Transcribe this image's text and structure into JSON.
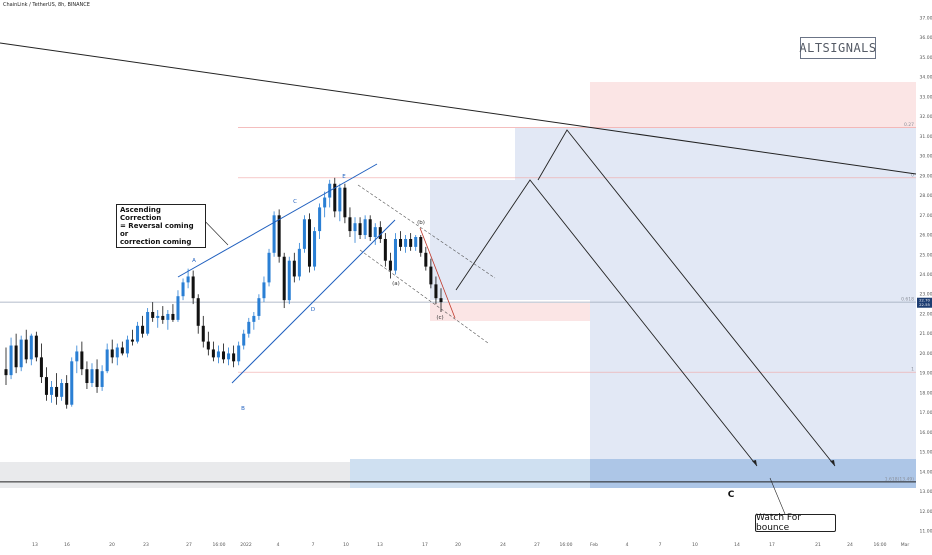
{
  "header": {
    "symbol_line": "ChainLink / TetherUS, 8h, BINANCE"
  },
  "watermark": "ALTSIGNALS",
  "annotations": {
    "ascending_correction": [
      "Ascending Correction",
      "= Reversal coming or",
      "correction coming"
    ],
    "watch_for_bounce": "Watch For bounce",
    "wave_c": "C",
    "labels": [
      "A",
      "B",
      "C",
      "D",
      "E",
      "(a)",
      "(b)",
      "(c)"
    ]
  },
  "fib_labels": [
    "0.27",
    "0",
    "0.618",
    "1",
    "1.618(13.49)"
  ],
  "price_badge": [
    "22.70",
    "22.55"
  ],
  "colors": {
    "up_candle": "#2a7fd4",
    "down_candle": "#111111",
    "target_box": "#dfe6f4",
    "target_box_strong": "#a9c3e6",
    "stop_box": "#fbe2e2",
    "channel": "#1f5fbf",
    "trendline": "#222222"
  },
  "chart_data": {
    "type": "candlestick",
    "title": "ChainLink / TetherUS, 8h, BINANCE",
    "y_axis": {
      "range": [
        10.5,
        38
      ],
      "ticks": [
        "37.00",
        "36.00",
        "35.00",
        "34.00",
        "33.00",
        "32.00",
        "31.00",
        "30.00",
        "29.00",
        "28.00",
        "27.00",
        "26.00",
        "25.00",
        "24.00",
        "23.00",
        "22.00",
        "21.00",
        "20.00",
        "19.00",
        "18.00",
        "17.00",
        "16.00",
        "15.00",
        "14.00",
        "13.00",
        "12.00",
        "11.00"
      ]
    },
    "x_axis": {
      "ticks": [
        "13",
        "16",
        "20",
        "23",
        "27",
        "16:00",
        "2022",
        "4",
        "7",
        "10",
        "13",
        "17",
        "20",
        "24",
        "27",
        "16:00",
        "Feb",
        "4",
        "7",
        "10",
        "14",
        "17",
        "21",
        "24",
        "16:00",
        "Mar"
      ]
    },
    "horizontal_levels": [
      {
        "label": "0.27",
        "price": 31.45
      },
      {
        "label": "0",
        "price": 28.9
      },
      {
        "label": "0.618",
        "price": 22.6
      },
      {
        "label": "1",
        "price": 19.05
      },
      {
        "label": "1.618(13.49)",
        "price": 13.49
      }
    ],
    "candles": [
      {
        "o": 19.2,
        "h": 20.3,
        "l": 18.4,
        "c": 18.9
      },
      {
        "o": 18.9,
        "h": 20.8,
        "l": 18.7,
        "c": 20.4
      },
      {
        "o": 20.4,
        "h": 21.0,
        "l": 19.0,
        "c": 19.3
      },
      {
        "o": 19.3,
        "h": 20.9,
        "l": 19.1,
        "c": 20.7
      },
      {
        "o": 20.7,
        "h": 21.2,
        "l": 19.5,
        "c": 19.7
      },
      {
        "o": 19.7,
        "h": 21.0,
        "l": 19.4,
        "c": 20.9
      },
      {
        "o": 20.9,
        "h": 21.1,
        "l": 19.6,
        "c": 19.8
      },
      {
        "o": 19.8,
        "h": 20.5,
        "l": 18.5,
        "c": 18.8
      },
      {
        "o": 18.8,
        "h": 19.3,
        "l": 17.6,
        "c": 17.9
      },
      {
        "o": 17.9,
        "h": 18.6,
        "l": 17.5,
        "c": 18.3
      },
      {
        "o": 18.3,
        "h": 19.0,
        "l": 17.4,
        "c": 17.8
      },
      {
        "o": 17.8,
        "h": 18.7,
        "l": 17.6,
        "c": 18.5
      },
      {
        "o": 18.5,
        "h": 18.9,
        "l": 17.2,
        "c": 17.4
      },
      {
        "o": 17.4,
        "h": 19.8,
        "l": 17.3,
        "c": 19.6
      },
      {
        "o": 19.6,
        "h": 20.4,
        "l": 19.0,
        "c": 20.1
      },
      {
        "o": 20.1,
        "h": 20.6,
        "l": 18.9,
        "c": 19.2
      },
      {
        "o": 19.2,
        "h": 19.6,
        "l": 18.2,
        "c": 18.5
      },
      {
        "o": 18.5,
        "h": 19.5,
        "l": 18.3,
        "c": 19.2
      },
      {
        "o": 19.2,
        "h": 19.7,
        "l": 18.0,
        "c": 18.3
      },
      {
        "o": 18.3,
        "h": 19.4,
        "l": 18.1,
        "c": 19.1
      },
      {
        "o": 19.1,
        "h": 20.5,
        "l": 19.0,
        "c": 20.2
      },
      {
        "o": 20.2,
        "h": 20.7,
        "l": 19.5,
        "c": 19.8
      },
      {
        "o": 19.8,
        "h": 20.5,
        "l": 19.4,
        "c": 20.3
      },
      {
        "o": 20.3,
        "h": 20.6,
        "l": 19.9,
        "c": 20.0
      },
      {
        "o": 20.0,
        "h": 20.9,
        "l": 19.8,
        "c": 20.7
      },
      {
        "o": 20.7,
        "h": 21.2,
        "l": 20.4,
        "c": 20.6
      },
      {
        "o": 20.6,
        "h": 21.6,
        "l": 20.5,
        "c": 21.4
      },
      {
        "o": 21.4,
        "h": 21.9,
        "l": 20.8,
        "c": 21.0
      },
      {
        "o": 21.0,
        "h": 22.3,
        "l": 20.9,
        "c": 22.1
      },
      {
        "o": 22.1,
        "h": 22.6,
        "l": 21.6,
        "c": 21.8
      },
      {
        "o": 21.8,
        "h": 22.2,
        "l": 21.3,
        "c": 21.9
      },
      {
        "o": 21.9,
        "h": 22.4,
        "l": 21.5,
        "c": 21.7
      },
      {
        "o": 21.7,
        "h": 22.2,
        "l": 21.2,
        "c": 22.0
      },
      {
        "o": 22.0,
        "h": 22.5,
        "l": 21.6,
        "c": 21.7
      },
      {
        "o": 21.7,
        "h": 23.2,
        "l": 21.6,
        "c": 22.9
      },
      {
        "o": 22.9,
        "h": 23.8,
        "l": 22.7,
        "c": 23.6
      },
      {
        "o": 23.6,
        "h": 24.3,
        "l": 23.3,
        "c": 23.9
      },
      {
        "o": 23.9,
        "h": 24.2,
        "l": 22.5,
        "c": 22.8
      },
      {
        "o": 22.8,
        "h": 23.0,
        "l": 21.0,
        "c": 21.4
      },
      {
        "o": 21.4,
        "h": 21.9,
        "l": 20.3,
        "c": 20.6
      },
      {
        "o": 20.6,
        "h": 21.1,
        "l": 19.9,
        "c": 20.2
      },
      {
        "o": 20.2,
        "h": 20.6,
        "l": 19.6,
        "c": 19.8
      },
      {
        "o": 19.8,
        "h": 20.4,
        "l": 19.5,
        "c": 20.1
      },
      {
        "o": 20.1,
        "h": 20.5,
        "l": 19.5,
        "c": 19.7
      },
      {
        "o": 19.7,
        "h": 20.3,
        "l": 19.4,
        "c": 20.0
      },
      {
        "o": 20.0,
        "h": 20.4,
        "l": 19.3,
        "c": 19.6
      },
      {
        "o": 19.6,
        "h": 20.6,
        "l": 19.4,
        "c": 20.4
      },
      {
        "o": 20.4,
        "h": 21.2,
        "l": 20.2,
        "c": 21.0
      },
      {
        "o": 21.0,
        "h": 21.8,
        "l": 20.8,
        "c": 21.6
      },
      {
        "o": 21.6,
        "h": 22.1,
        "l": 21.2,
        "c": 21.9
      },
      {
        "o": 21.9,
        "h": 23.0,
        "l": 21.7,
        "c": 22.8
      },
      {
        "o": 22.8,
        "h": 23.9,
        "l": 22.6,
        "c": 23.6
      },
      {
        "o": 23.6,
        "h": 25.3,
        "l": 23.4,
        "c": 25.1
      },
      {
        "o": 25.1,
        "h": 27.2,
        "l": 24.9,
        "c": 27.0
      },
      {
        "o": 27.0,
        "h": 27.3,
        "l": 24.6,
        "c": 24.9
      },
      {
        "o": 24.9,
        "h": 25.1,
        "l": 22.3,
        "c": 22.7
      },
      {
        "o": 22.7,
        "h": 24.9,
        "l": 22.5,
        "c": 24.7
      },
      {
        "o": 24.7,
        "h": 25.1,
        "l": 23.6,
        "c": 23.9
      },
      {
        "o": 23.9,
        "h": 25.6,
        "l": 23.7,
        "c": 25.3
      },
      {
        "o": 25.3,
        "h": 27.0,
        "l": 25.1,
        "c": 26.8
      },
      {
        "o": 26.8,
        "h": 27.1,
        "l": 24.1,
        "c": 24.4
      },
      {
        "o": 24.4,
        "h": 26.4,
        "l": 24.2,
        "c": 26.2
      },
      {
        "o": 26.2,
        "h": 27.6,
        "l": 25.8,
        "c": 27.4
      },
      {
        "o": 27.4,
        "h": 28.2,
        "l": 26.9,
        "c": 27.9
      },
      {
        "o": 27.9,
        "h": 28.8,
        "l": 27.4,
        "c": 28.6
      },
      {
        "o": 28.6,
        "h": 28.9,
        "l": 26.9,
        "c": 27.2
      },
      {
        "o": 27.2,
        "h": 28.6,
        "l": 26.7,
        "c": 28.4
      },
      {
        "o": 28.4,
        "h": 28.6,
        "l": 26.6,
        "c": 26.9
      },
      {
        "o": 26.9,
        "h": 27.4,
        "l": 25.9,
        "c": 26.2
      },
      {
        "o": 26.2,
        "h": 26.9,
        "l": 25.6,
        "c": 26.6
      },
      {
        "o": 26.6,
        "h": 26.9,
        "l": 25.8,
        "c": 26.0
      },
      {
        "o": 26.0,
        "h": 27.0,
        "l": 25.8,
        "c": 26.8
      },
      {
        "o": 26.8,
        "h": 27.0,
        "l": 25.7,
        "c": 25.9
      },
      {
        "o": 25.9,
        "h": 26.6,
        "l": 25.5,
        "c": 26.4
      },
      {
        "o": 26.4,
        "h": 26.7,
        "l": 25.6,
        "c": 25.8
      },
      {
        "o": 25.8,
        "h": 26.1,
        "l": 24.4,
        "c": 24.7
      },
      {
        "o": 24.7,
        "h": 25.1,
        "l": 23.8,
        "c": 24.2
      },
      {
        "o": 24.2,
        "h": 26.1,
        "l": 24.0,
        "c": 25.8
      },
      {
        "o": 25.8,
        "h": 26.2,
        "l": 25.2,
        "c": 25.4
      },
      {
        "o": 25.4,
        "h": 26.0,
        "l": 25.1,
        "c": 25.8
      },
      {
        "o": 25.8,
        "h": 26.1,
        "l": 25.2,
        "c": 25.4
      },
      {
        "o": 25.4,
        "h": 26.0,
        "l": 25.2,
        "c": 25.9
      },
      {
        "o": 25.9,
        "h": 26.0,
        "l": 24.9,
        "c": 25.1
      },
      {
        "o": 25.1,
        "h": 25.4,
        "l": 24.2,
        "c": 24.4
      },
      {
        "o": 24.4,
        "h": 24.8,
        "l": 23.3,
        "c": 23.5
      },
      {
        "o": 23.5,
        "h": 23.9,
        "l": 22.5,
        "c": 22.8
      },
      {
        "o": 22.8,
        "h": 23.3,
        "l": 22.1,
        "c": 22.6
      }
    ]
  }
}
